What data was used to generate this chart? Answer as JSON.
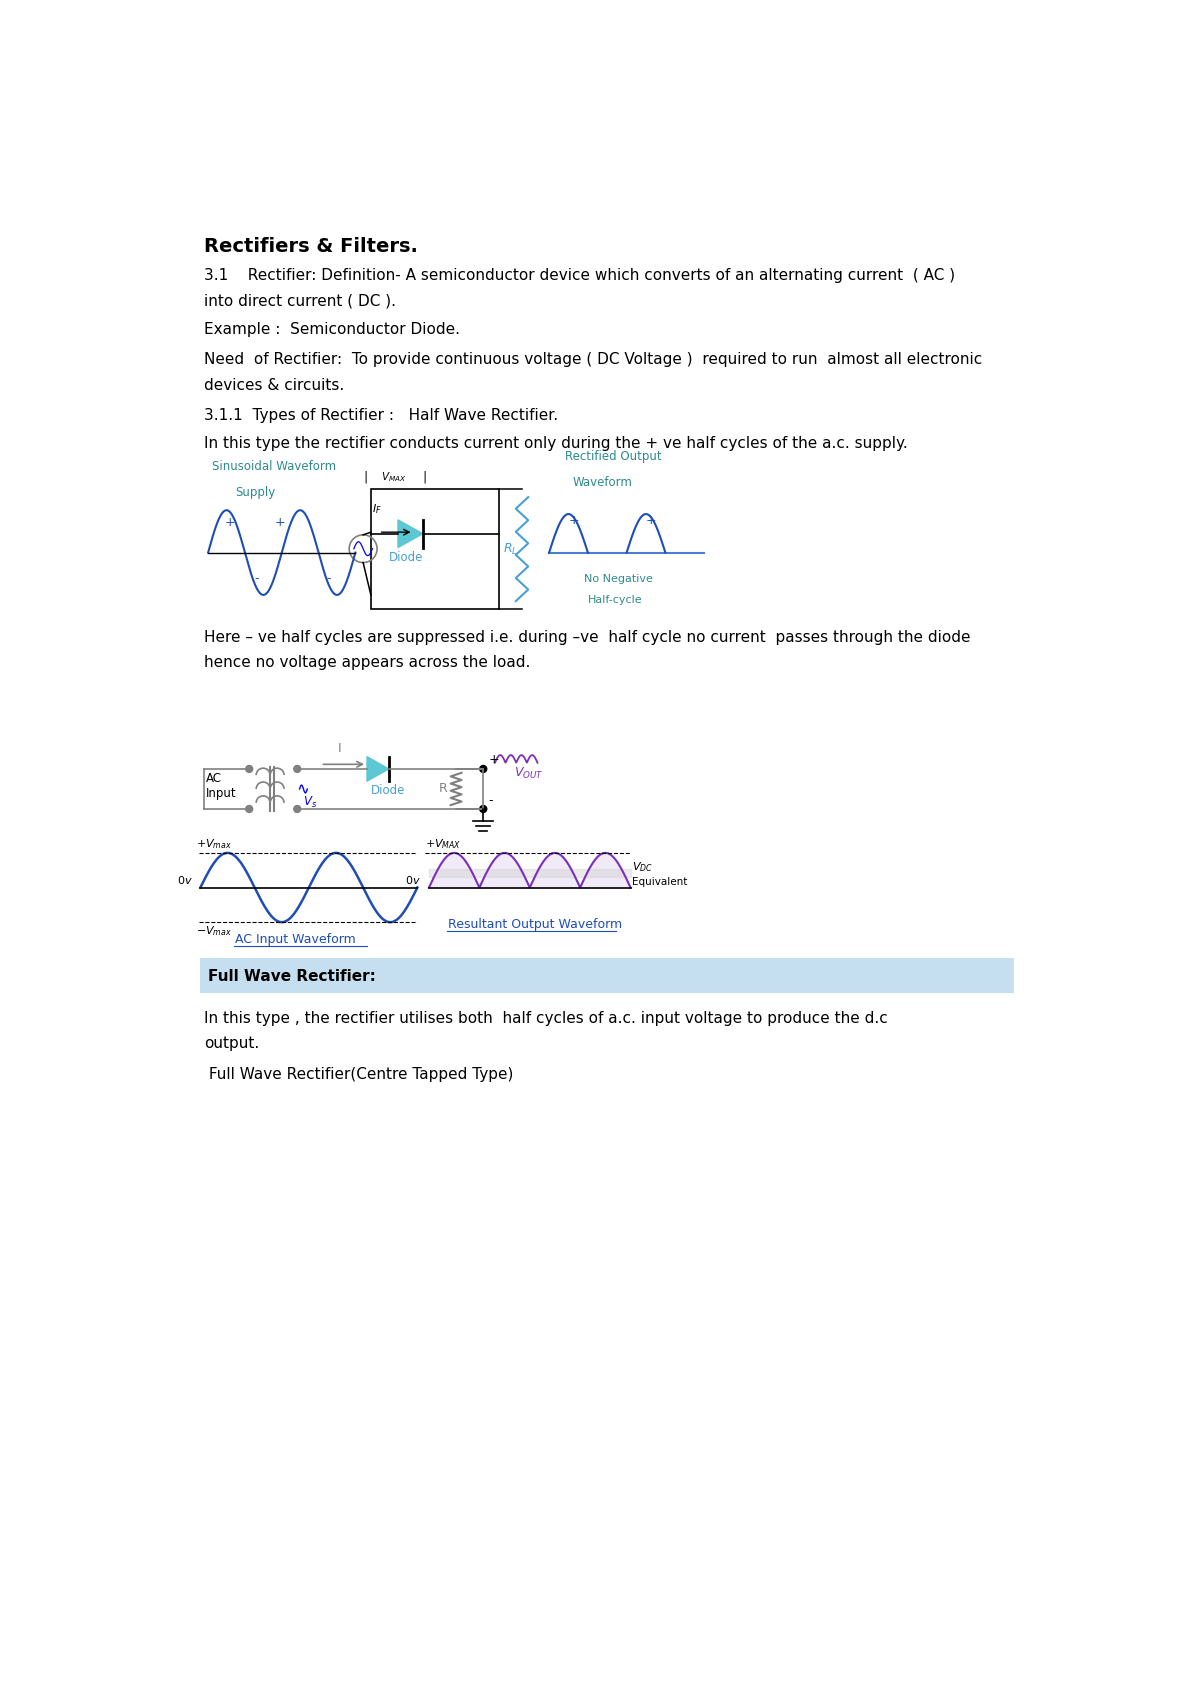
{
  "title": "Rectifiers & Filters.",
  "bg_color": "#ffffff",
  "text_color": "#000000",
  "blue_color": "#1e4db7",
  "purple_color": "#7b2fbe",
  "teal_color": "#2e8b8b",
  "gray_color": "#808080",
  "light_blue_bg": "#cce0f0",
  "para1_num": "3.1",
  "para1_line1": "3.1    Rectifier: Definition- A semiconductor device which converts of an alternating current  ( AC )",
  "para1_line2": "into direct current ( DC ).",
  "para2": "Example :  Semiconductor Diode.",
  "para3_line1": "Need  of Rectifier:  To provide continuous voltage ( DC Voltage )  required to run  almost all electronic",
  "para3_line2": "devices & circuits.",
  "para4": "3.1.1  Types of Rectifier :   Half Wave Rectifier.",
  "para5": "In this type the rectifier conducts current only during the + ve half cycles of the a.c. supply.",
  "para6_line1": "Here – ve half cycles are suppressed i.e. during –ve  half cycle no current  passes through the diode",
  "para6_line2": "hence no voltage appears across the load.",
  "fullwave_header": "Full Wave Rectifier:",
  "para7_line1": "In this type , the rectifier utilises both  half cycles of a.c. input voltage to produce the d.c",
  "para7_line2": "output.",
  "para8": " Full Wave Rectifier(Centre Tapped Type)"
}
